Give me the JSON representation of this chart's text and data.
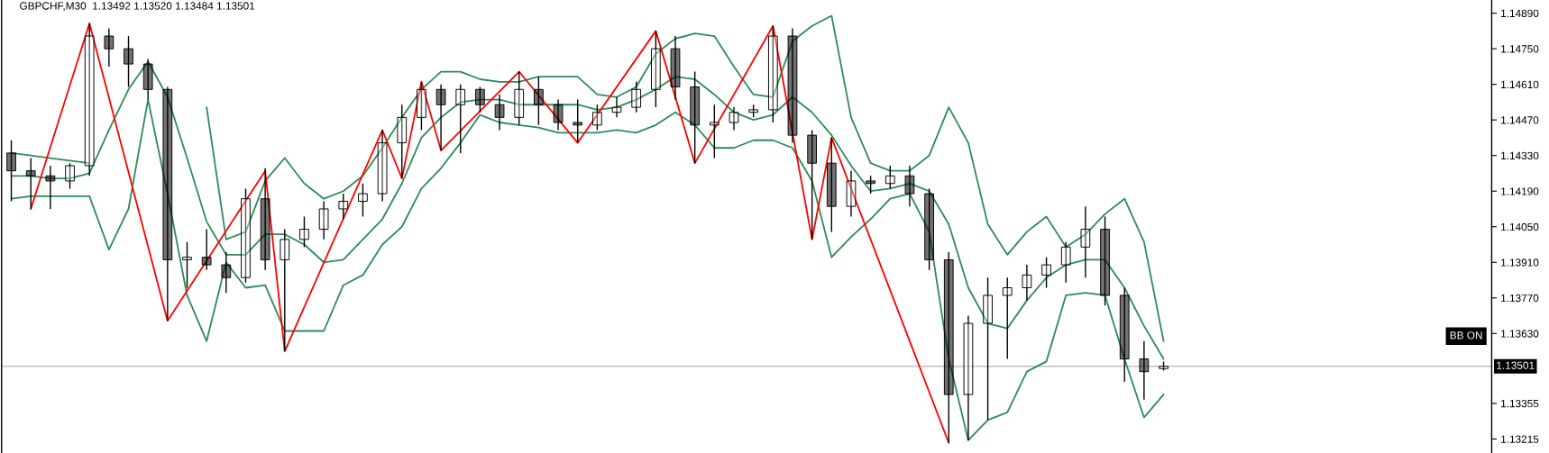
{
  "chart_data": {
    "type": "candlestick",
    "title": "GBPCHF,M30  1.13492 1.13520 1.13484 1.13501",
    "annotations": [
      "BB ON"
    ],
    "categories": [
      null,
      null,
      null,
      null,
      null,
      null,
      null,
      null,
      null,
      null,
      null,
      null,
      null,
      null,
      null,
      null,
      null,
      null,
      null,
      null,
      null,
      null,
      null,
      null,
      null,
      null,
      null,
      null,
      null,
      null,
      null,
      null,
      null,
      null,
      null,
      null,
      null,
      null,
      null,
      null,
      null,
      null,
      null,
      null,
      null,
      null,
      null,
      null,
      null,
      null,
      null,
      null,
      null,
      null,
      null,
      null,
      null,
      null,
      null,
      null
    ],
    "ohlc": [
      [
        1.1434,
        1.1439,
        1.1415,
        1.1427
      ],
      [
        1.1427,
        1.1432,
        1.1412,
        1.1425
      ],
      [
        1.1425,
        1.1429,
        1.1412,
        1.1423
      ],
      [
        1.1423,
        1.143,
        1.142,
        1.1429
      ],
      [
        1.1429,
        1.1485,
        1.1425,
        1.148
      ],
      [
        1.148,
        1.1483,
        1.1468,
        1.1475
      ],
      [
        1.1475,
        1.148,
        1.146,
        1.1469
      ],
      [
        1.1469,
        1.1471,
        1.1455,
        1.1459
      ],
      [
        1.1459,
        1.146,
        1.1368,
        1.1392
      ],
      [
        1.1392,
        1.1399,
        1.1381,
        1.1393
      ],
      [
        1.1393,
        1.1404,
        1.1388,
        1.139
      ],
      [
        1.139,
        1.1395,
        1.1379,
        1.1385
      ],
      [
        1.1385,
        1.142,
        1.1383,
        1.1416
      ],
      [
        1.1416,
        1.1428,
        1.1388,
        1.1392
      ],
      [
        1.1392,
        1.1404,
        1.1356,
        1.14
      ],
      [
        1.14,
        1.1409,
        1.1397,
        1.1404
      ],
      [
        1.1404,
        1.1415,
        1.14,
        1.1412
      ],
      [
        1.1412,
        1.1418,
        1.1408,
        1.1415
      ],
      [
        1.1415,
        1.1422,
        1.1409,
        1.1418
      ],
      [
        1.1418,
        1.1443,
        1.1415,
        1.1438
      ],
      [
        1.1438,
        1.1453,
        1.1424,
        1.1448
      ],
      [
        1.1448,
        1.1462,
        1.1443,
        1.1459
      ],
      [
        1.1459,
        1.1461,
        1.1435,
        1.1453
      ],
      [
        1.1453,
        1.1461,
        1.1434,
        1.1459
      ],
      [
        1.1459,
        1.146,
        1.145,
        1.1453
      ],
      [
        1.1453,
        1.1457,
        1.1443,
        1.1448
      ],
      [
        1.1448,
        1.1466,
        1.1445,
        1.1459
      ],
      [
        1.1459,
        1.1464,
        1.1445,
        1.1453
      ],
      [
        1.1453,
        1.1455,
        1.1443,
        1.1446
      ],
      [
        1.1446,
        1.1455,
        1.1438,
        1.1445
      ],
      [
        1.1445,
        1.1453,
        1.1443,
        1.145
      ],
      [
        1.145,
        1.1456,
        1.1448,
        1.1452
      ],
      [
        1.1452,
        1.1462,
        1.145,
        1.1459
      ],
      [
        1.1459,
        1.1482,
        1.1452,
        1.1475
      ],
      [
        1.1475,
        1.148,
        1.1455,
        1.146
      ],
      [
        1.146,
        1.1466,
        1.143,
        1.1445
      ],
      [
        1.1445,
        1.1453,
        1.1432,
        1.1446
      ],
      [
        1.1446,
        1.1452,
        1.1443,
        1.145
      ],
      [
        1.145,
        1.1453,
        1.1448,
        1.1451
      ],
      [
        1.1451,
        1.1484,
        1.1446,
        1.148
      ],
      [
        1.148,
        1.1483,
        1.1438,
        1.1441
      ],
      [
        1.1441,
        1.1443,
        1.14,
        1.143
      ],
      [
        1.143,
        1.144,
        1.1403,
        1.1413
      ],
      [
        1.1413,
        1.1427,
        1.1409,
        1.1423
      ],
      [
        1.1423,
        1.1425,
        1.1418,
        1.1422
      ],
      [
        1.1422,
        1.1429,
        1.142,
        1.1425
      ],
      [
        1.1425,
        1.1429,
        1.1413,
        1.1418
      ],
      [
        1.1418,
        1.142,
        1.1388,
        1.1392
      ],
      [
        1.1392,
        1.1395,
        1.132,
        1.1339
      ],
      [
        1.1339,
        1.137,
        1.1321,
        1.1367
      ],
      [
        1.1367,
        1.1385,
        1.1329,
        1.1378
      ],
      [
        1.1378,
        1.1385,
        1.1353,
        1.1381
      ],
      [
        1.1381,
        1.139,
        1.1376,
        1.1386
      ],
      [
        1.1386,
        1.1393,
        1.1381,
        1.139
      ],
      [
        1.139,
        1.1399,
        1.1383,
        1.1397
      ],
      [
        1.1397,
        1.1413,
        1.1385,
        1.1404
      ],
      [
        1.1404,
        1.1409,
        1.1374,
        1.1378
      ],
      [
        1.1378,
        1.1381,
        1.1344,
        1.1353
      ],
      [
        1.1353,
        1.136,
        1.1337,
        1.1348
      ],
      [
        1.13492,
        1.1352,
        1.13484,
        1.13501
      ]
    ],
    "series": [
      {
        "type": "line",
        "color": "#2e8b57",
        "values": [
          1.1434,
          1.1433,
          1.1432,
          1.1431,
          1.143,
          null,
          null,
          null,
          null,
          null,
          null,
          null,
          null,
          null,
          null,
          null,
          null,
          null,
          null,
          null,
          null,
          null,
          null,
          null,
          null,
          null,
          null,
          null,
          null,
          null,
          null,
          null,
          null,
          null,
          null,
          null,
          null,
          null,
          null,
          null,
          null,
          null,
          null,
          null,
          null,
          null,
          null,
          null,
          null,
          null,
          null,
          null,
          null,
          null,
          null,
          null,
          null,
          null,
          null,
          null
        ]
      },
      {
        "type": "line",
        "color": "#2e8b57",
        "values": [
          null,
          null,
          null,
          null,
          null,
          null,
          null,
          null,
          null,
          null,
          1.1452,
          1.14,
          1.1403,
          1.1423,
          1.1432,
          1.1422,
          1.1416,
          1.1419,
          1.1425,
          1.1436,
          1.1448,
          1.1459,
          1.1466,
          1.1466,
          1.1463,
          1.1462,
          1.1462,
          1.1464,
          1.1464,
          1.1464,
          1.1457,
          1.1456,
          1.146,
          1.1473,
          1.1479,
          1.1481,
          1.148,
          1.1468,
          1.1457,
          1.1456,
          1.1478,
          1.1484,
          1.1488,
          1.1448,
          1.143,
          1.1427,
          1.1427,
          1.1433,
          1.1452,
          1.1438,
          1.1406,
          1.1394,
          1.1403,
          1.1409,
          1.1397,
          1.1402,
          1.141,
          1.1416,
          1.1399,
          1.136
        ]
      },
      {
        "type": "line",
        "color": "#2e8b57",
        "values": [
          1.1425,
          1.1425,
          1.1424,
          1.1424,
          1.1426,
          1.1443,
          1.1459,
          1.147,
          1.1456,
          1.1432,
          1.1407,
          1.1394,
          1.1394,
          1.1402,
          1.1402,
          1.1398,
          1.1391,
          1.1392,
          1.14,
          1.1408,
          1.1422,
          1.144,
          1.1448,
          1.1454,
          1.1455,
          1.1455,
          1.1453,
          1.1453,
          1.1453,
          1.1453,
          1.1451,
          1.1452,
          1.1455,
          1.1459,
          1.1464,
          1.1463,
          1.1457,
          1.145,
          1.1447,
          1.1449,
          1.1456,
          1.145,
          1.1441,
          1.1429,
          1.1419,
          1.142,
          1.1422,
          1.1419,
          1.1406,
          1.1381,
          1.1367,
          1.1365,
          1.1376,
          1.1385,
          1.139,
          1.1392,
          1.1392,
          1.1381,
          1.1366,
          1.1353
        ]
      },
      {
        "type": "line",
        "color": "#2e8b57",
        "values": [
          1.1416,
          1.1417,
          1.1417,
          1.1417,
          1.1417,
          1.1396,
          1.1412,
          1.1455,
          1.1418,
          1.1378,
          1.136,
          1.1391,
          1.1381,
          1.1382,
          1.1364,
          1.1364,
          1.1364,
          1.1382,
          1.1386,
          1.1398,
          1.1405,
          1.142,
          1.1428,
          1.1438,
          1.1449,
          1.1446,
          1.1445,
          1.1444,
          1.1442,
          1.1442,
          1.1442,
          1.1443,
          1.1442,
          1.1445,
          1.145,
          1.1445,
          1.1436,
          1.1436,
          1.1439,
          1.1439,
          1.1436,
          1.1423,
          1.1393,
          1.1401,
          1.1408,
          1.1416,
          1.1418,
          1.1403,
          1.1353,
          1.1321,
          1.1329,
          1.1332,
          1.1348,
          1.1352,
          1.1378,
          1.1379,
          1.1378,
          1.1353,
          1.133,
          1.1339
        ]
      },
      {
        "type": "line",
        "color": "#ff0000",
        "values": [
          null,
          1.1412,
          null,
          null,
          1.1485,
          null,
          null,
          null,
          1.1368,
          null,
          null,
          null,
          null,
          1.1427,
          1.1356,
          null,
          null,
          null,
          null,
          1.1443,
          1.1424,
          1.1462,
          1.1435,
          null,
          null,
          null,
          1.1466,
          null,
          null,
          1.1438,
          null,
          null,
          null,
          1.1482,
          null,
          1.143,
          null,
          null,
          null,
          1.1484,
          null,
          1.14,
          1.144,
          null,
          null,
          null,
          null,
          null,
          1.132,
          null,
          null,
          null,
          null,
          null,
          null,
          null,
          null,
          null,
          null,
          null
        ]
      }
    ],
    "ref_lines": [
      {
        "axis": "y",
        "value": 1.13501,
        "label": "1.13501",
        "color": "#c0c0c0"
      }
    ],
    "ylim": [
      1.1316,
      1.1494
    ],
    "yticks": [
      {
        "value": 1.1489,
        "label": "1.14890"
      },
      {
        "value": 1.1475,
        "label": "1.14750"
      },
      {
        "value": 1.1461,
        "label": "1.14610"
      },
      {
        "value": 1.1447,
        "label": "1.14470"
      },
      {
        "value": 1.1433,
        "label": "1.14330"
      },
      {
        "value": 1.1419,
        "label": "1.14190"
      },
      {
        "value": 1.1405,
        "label": "1.14050"
      },
      {
        "value": 1.1391,
        "label": "1.13910"
      },
      {
        "value": 1.1377,
        "label": "1.13770"
      },
      {
        "value": 1.1363,
        "label": "1.13630"
      },
      1.13355,
      1.13215
    ]
  }
}
